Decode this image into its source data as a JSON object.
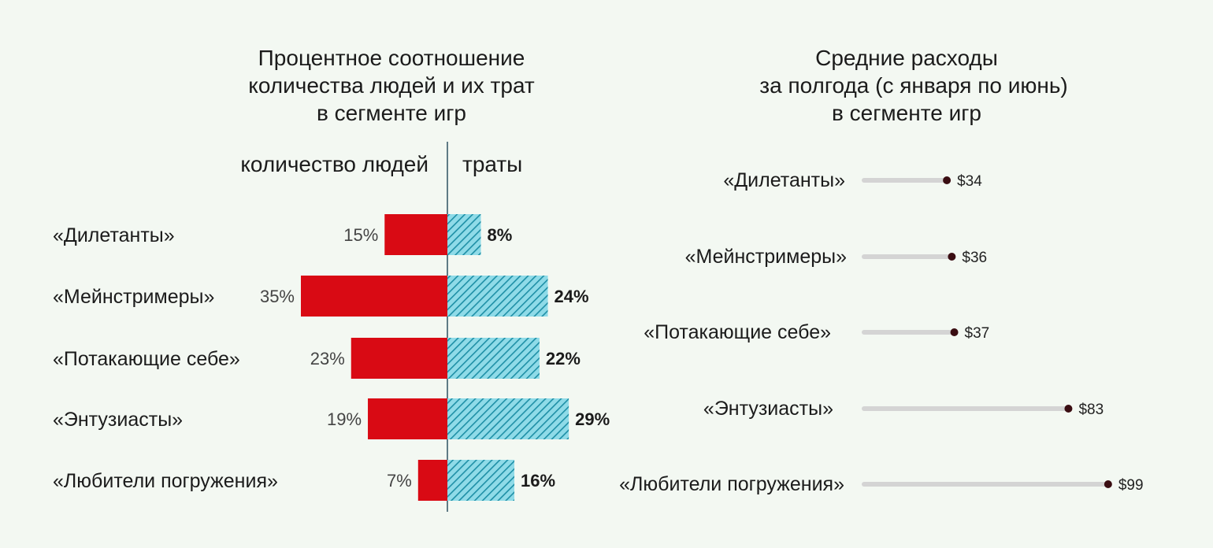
{
  "chart_data": [
    {
      "type": "bar",
      "title": [
        "Процентное соотношение",
        "количества людей и их трат",
        "в сегменте игр"
      ],
      "categories": [
        "«Дилетанты»",
        "«Мейнстримеры»",
        "«Потакающие себе»",
        "«Энтузиасты»",
        "«Любители погружения»"
      ],
      "series": [
        {
          "name": "количество людей",
          "values": [
            15,
            35,
            23,
            19,
            7
          ],
          "labels": [
            "15%",
            "35%",
            "23%",
            "19%",
            "7%"
          ],
          "color": "#d90a14",
          "fill": "solid"
        },
        {
          "name": "траты",
          "values": [
            8,
            24,
            22,
            29,
            16
          ],
          "labels": [
            "8%",
            "24%",
            "22%",
            "29%",
            "16%"
          ],
          "color": "#2a9db5",
          "fill": "hatched"
        }
      ],
      "orientation": "horizontal-diverging",
      "xlim": [
        0,
        35
      ],
      "grid": false
    },
    {
      "type": "scatter",
      "title": [
        "Средние расходы",
        "за полгода (с января по июнь)",
        "в сегменте игр"
      ],
      "categories": [
        "«Дилетанты»",
        "«Мейнстримеры»",
        "«Потакающие себе»",
        "«Энтузиасты»",
        "«Любители погружения»"
      ],
      "values": [
        34,
        36,
        37,
        83,
        99
      ],
      "labels": [
        "$34",
        "$36",
        "$37",
        "$83",
        "$99"
      ],
      "style": "lollipop",
      "xlim": [
        0,
        100
      ],
      "grid": false,
      "colors": {
        "track": "#d4d4d4",
        "dot": "#3a0d12"
      }
    }
  ]
}
